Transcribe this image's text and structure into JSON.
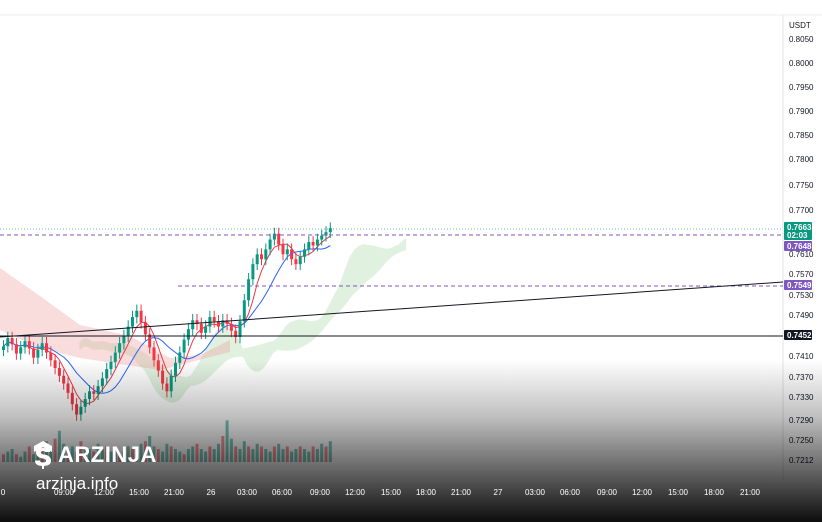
{
  "chart_data": {
    "type": "candlestick",
    "currency": "USDT",
    "y_ticks": [
      "0.8050",
      "0.8000",
      "0.7950",
      "0.7900",
      "0.7850",
      "0.7800",
      "0.7750",
      "0.7700",
      "0.7610",
      "0.7570",
      "0.7530",
      "0.7490",
      "0.7410",
      "0.7370",
      "0.7330",
      "0.7290",
      "0.7250",
      "0.7212"
    ],
    "x_ticks": [
      "0",
      "09:00",
      "12:00",
      "15:00",
      "21:00",
      "26",
      "03:00",
      "06:00",
      "09:00",
      "12:00",
      "15:00",
      "18:00",
      "21:00",
      "27",
      "03:00",
      "06:00",
      "09:00",
      "12:00",
      "15:00",
      "18:00",
      "21:00"
    ],
    "price_tags": [
      {
        "value": "0.7663",
        "sub": "02:03",
        "color": "#089981"
      },
      {
        "value": "0.7648",
        "color": "#7e57c2"
      },
      {
        "value": "0.7549",
        "color": "#7e57c2"
      },
      {
        "value": "0.7452",
        "color": "#131722"
      }
    ],
    "candles_close": [
      0.7432,
      0.7448,
      0.7436,
      0.7418,
      0.743,
      0.7442,
      0.7428,
      0.741,
      0.7425,
      0.7438,
      0.742,
      0.7405,
      0.739,
      0.7375,
      0.736,
      0.7342,
      0.732,
      0.73,
      0.7315,
      0.733,
      0.7345,
      0.734,
      0.7355,
      0.737,
      0.7388,
      0.7402,
      0.742,
      0.7438,
      0.7452,
      0.747,
      0.7488,
      0.75,
      0.7478,
      0.7455,
      0.743,
      0.7405,
      0.7385,
      0.736,
      0.7345,
      0.7375,
      0.74,
      0.742,
      0.7445,
      0.7465,
      0.7482,
      0.7475,
      0.7458,
      0.747,
      0.7488,
      0.748,
      0.747,
      0.7482,
      0.7475,
      0.7462,
      0.745,
      0.748,
      0.752,
      0.756,
      0.759,
      0.761,
      0.76,
      0.762,
      0.764,
      0.7652,
      0.763,
      0.761,
      0.762,
      0.76,
      0.759,
      0.7605,
      0.762,
      0.7635,
      0.7628,
      0.764,
      0.7648,
      0.7655,
      0.7663
    ],
    "volume": [
      3,
      4,
      5,
      3,
      2,
      4,
      6,
      3,
      4,
      5,
      8,
      6,
      9,
      12,
      7,
      5,
      6,
      4,
      8,
      6,
      5,
      4,
      7,
      5,
      6,
      4,
      5,
      3,
      4,
      6,
      5,
      4,
      7,
      8,
      10,
      6,
      5,
      4,
      7,
      6,
      5,
      4,
      3,
      5,
      6,
      7,
      5,
      4,
      6,
      5,
      7,
      10,
      16,
      9,
      6,
      5,
      8,
      6,
      5,
      7,
      6,
      5,
      4,
      6,
      7,
      5,
      6,
      4,
      5,
      6,
      5,
      4,
      6,
      5,
      7,
      6,
      8
    ]
  },
  "watermark": {
    "brand": "ARZINJA",
    "url": "arzinja.info"
  }
}
